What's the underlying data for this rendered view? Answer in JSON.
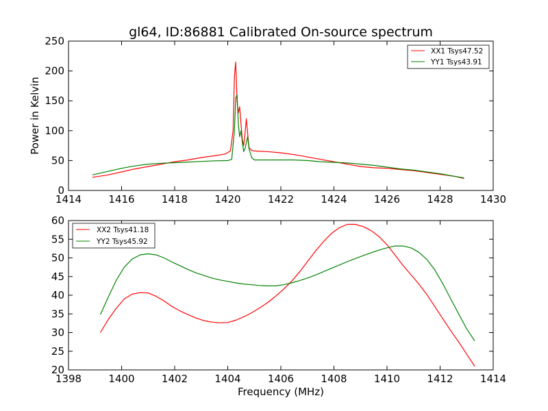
{
  "chart_data": [
    {
      "type": "line",
      "title": "gl64, ID:86881 Calibrated On-source spectrum",
      "xlabel": "",
      "ylabel": "Power in Kelvin",
      "xlim": [
        1414,
        1430
      ],
      "ylim": [
        0,
        250
      ],
      "xticks": [
        "1414",
        "1416",
        "1418",
        "1420",
        "1422",
        "1424",
        "1426",
        "1428",
        "1430"
      ],
      "yticks": [
        "0",
        "50",
        "100",
        "150",
        "200",
        "250"
      ],
      "legend_position": "top-right",
      "grid": false,
      "series": [
        {
          "name": "XX1 Tsys47.52",
          "color": "#ff0000",
          "x": [
            1414.9,
            1415.5,
            1416.0,
            1416.5,
            1417.0,
            1417.5,
            1418.0,
            1418.5,
            1419.0,
            1419.5,
            1419.9,
            1420.1,
            1420.2,
            1420.25,
            1420.3,
            1420.35,
            1420.4,
            1420.45,
            1420.5,
            1420.55,
            1420.6,
            1420.65,
            1420.7,
            1420.75,
            1420.8,
            1420.9,
            1421.0,
            1421.5,
            1422.0,
            1422.5,
            1423.0,
            1423.5,
            1424.0,
            1424.5,
            1425.0,
            1425.5,
            1426.0,
            1426.5,
            1427.0,
            1427.5,
            1428.0,
            1428.5,
            1428.9
          ],
          "y": [
            22,
            26,
            31,
            36,
            40,
            44,
            48,
            51,
            55,
            58,
            61,
            66,
            100,
            190,
            215,
            150,
            130,
            140,
            110,
            85,
            75,
            95,
            120,
            95,
            72,
            67,
            66,
            65,
            63,
            60,
            56,
            52,
            48,
            44,
            40,
            38,
            37,
            35,
            33,
            30,
            27,
            24,
            20
          ]
        },
        {
          "name": "YY1 Tsys43.91",
          "color": "#008000",
          "x": [
            1414.9,
            1415.5,
            1416.0,
            1416.5,
            1417.0,
            1417.5,
            1418.0,
            1418.5,
            1419.0,
            1419.5,
            1420.0,
            1420.15,
            1420.25,
            1420.3,
            1420.35,
            1420.4,
            1420.45,
            1420.5,
            1420.55,
            1420.6,
            1420.65,
            1420.7,
            1420.75,
            1420.8,
            1420.9,
            1421.0,
            1421.5,
            1422.0,
            1422.5,
            1423.0,
            1423.5,
            1424.0,
            1424.5,
            1425.0,
            1425.5,
            1426.0,
            1426.5,
            1427.0,
            1427.5,
            1428.0,
            1428.5,
            1428.9
          ],
          "y": [
            26,
            32,
            37,
            41,
            44,
            45.5,
            46.5,
            47.5,
            48.5,
            49.5,
            50,
            52,
            100,
            155,
            160,
            110,
            90,
            100,
            80,
            65,
            70,
            80,
            90,
            70,
            55,
            51,
            51,
            51,
            51,
            50,
            48,
            47,
            46,
            44,
            42,
            39,
            36,
            34,
            31,
            28,
            24,
            21
          ]
        }
      ]
    },
    {
      "type": "line",
      "title": "",
      "xlabel": "Frequency (MHz)",
      "ylabel": "",
      "xlim": [
        1398,
        1414
      ],
      "ylim": [
        20,
        60
      ],
      "xticks": [
        "1398",
        "1400",
        "1402",
        "1404",
        "1406",
        "1408",
        "1410",
        "1412",
        "1414"
      ],
      "yticks": [
        "20",
        "25",
        "30",
        "35",
        "40",
        "45",
        "50",
        "55",
        "60"
      ],
      "legend_position": "top-left",
      "grid": false,
      "series": [
        {
          "name": "XX2 Tsys41.18",
          "color": "#ff0000",
          "x": [
            1399.2,
            1399.5,
            1399.8,
            1400.1,
            1400.4,
            1400.7,
            1401.0,
            1401.3,
            1401.6,
            1401.9,
            1402.2,
            1402.5,
            1402.8,
            1403.1,
            1403.4,
            1403.7,
            1404.0,
            1404.3,
            1404.6,
            1404.9,
            1405.2,
            1405.5,
            1405.8,
            1406.1,
            1406.4,
            1406.7,
            1407.0,
            1407.3,
            1407.6,
            1407.9,
            1408.2,
            1408.5,
            1408.8,
            1409.1,
            1409.4,
            1409.7,
            1410.0,
            1410.3,
            1410.6,
            1410.9,
            1411.2,
            1411.5,
            1411.8,
            1412.1,
            1412.4,
            1412.7,
            1413.0,
            1413.3
          ],
          "y": [
            30,
            33.5,
            36.5,
            39,
            40.3,
            40.7,
            40.6,
            39.7,
            38.5,
            37,
            35.8,
            34.8,
            33.9,
            33.2,
            32.8,
            32.6,
            32.7,
            33.3,
            34.2,
            35.3,
            36.6,
            38,
            39.7,
            41.6,
            43.7,
            46.2,
            49,
            51.8,
            54.3,
            56.5,
            58.1,
            59,
            59,
            58.4,
            57.3,
            55.7,
            53.5,
            50.8,
            48,
            45.5,
            43,
            40.2,
            37,
            33.7,
            30.5,
            27.5,
            24.2,
            21
          ]
        },
        {
          "name": "YY2 Tsys45.92",
          "color": "#008000",
          "x": [
            1399.2,
            1399.5,
            1399.8,
            1400.1,
            1400.4,
            1400.7,
            1401.0,
            1401.3,
            1401.6,
            1401.9,
            1402.2,
            1402.5,
            1402.8,
            1403.1,
            1403.4,
            1403.7,
            1404.0,
            1404.3,
            1404.6,
            1404.9,
            1405.2,
            1405.5,
            1405.8,
            1406.1,
            1406.4,
            1406.7,
            1407.0,
            1407.3,
            1407.6,
            1407.9,
            1408.2,
            1408.5,
            1408.8,
            1409.1,
            1409.4,
            1409.7,
            1410.0,
            1410.3,
            1410.6,
            1410.9,
            1411.2,
            1411.5,
            1411.8,
            1412.1,
            1412.4,
            1412.7,
            1413.0,
            1413.3
          ],
          "y": [
            34.8,
            39.5,
            44,
            47.5,
            49.7,
            50.8,
            51.1,
            50.8,
            50,
            48.9,
            47.9,
            46.9,
            46,
            45.3,
            44.6,
            44.1,
            43.7,
            43.3,
            43,
            42.8,
            42.6,
            42.5,
            42.5,
            42.8,
            43.3,
            43.9,
            44.6,
            45.4,
            46.3,
            47.2,
            48.1,
            49,
            49.8,
            50.6,
            51.4,
            52.1,
            52.7,
            53.2,
            53.2,
            52.7,
            51.5,
            49.6,
            46.8,
            43.1,
            39,
            35,
            31,
            27.8
          ]
        }
      ]
    }
  ]
}
